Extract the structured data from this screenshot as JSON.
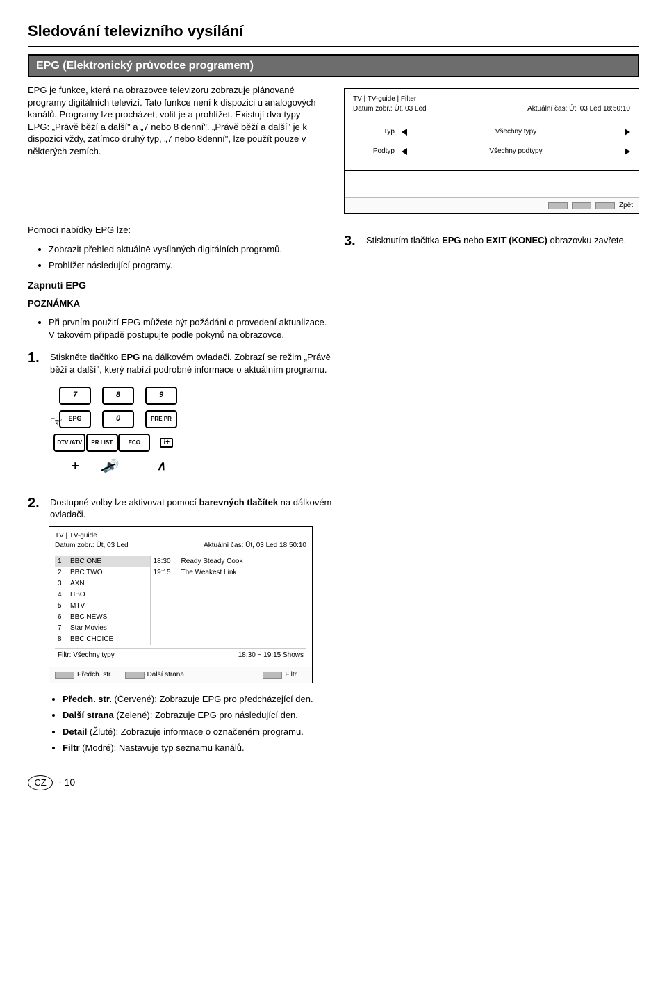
{
  "page": {
    "h1": "Sledování televizního vysílání",
    "h2": "EPG (Elektronický průvodce programem)",
    "footer_cz": "CZ",
    "footer_page": "- 10"
  },
  "intro": "EPG je funkce, která na obrazovce televizoru zobrazuje plánované programy digitálních televizí. Tato funkce není k dispozici u analogových kanálů. Programy lze procházet, volit je a prohlížet. Existují dva typy EPG: „Právě běží a další\" a „7 nebo 8 denní\". „Právě běží a další\" je k dispozici vždy, zatímco druhý typ, „7 nebo 8denní\", lze použít pouze v některých zemích.",
  "menu_intro": "Pomocí nabídky EPG lze:",
  "menu_items": {
    "i0": "Zobrazit přehled aktuálně vysílaných digitálních programů.",
    "i1": "Prohlížet následující programy."
  },
  "zapnuti_h": "Zapnutí EPG",
  "note_h": "POZNÁMKA",
  "note_item": "Při prvním použití EPG můžete být požádáni o provedení aktualizace. V takovém případě postupujte podle pokynů na obrazovce.",
  "step1": {
    "num": "1.",
    "pre": "Stiskněte tlačítko ",
    "b": "EPG",
    "post": " na dálkovém ovladači. Zobrazí se režim „Právě běží a další\", který nabízí podrobné informace o aktuálním programu."
  },
  "step2": {
    "num": "2.",
    "pre": "Dostupné volby lze aktivovat pomocí ",
    "b": "barevných tlačítek",
    "post": " na dálkovém ovladači."
  },
  "step3": {
    "num": "3.",
    "pre": "Stisknutím tlačítka ",
    "b1": "EPG",
    "mid": " nebo ",
    "b2": "EXIT (KONEC)",
    "post": " obrazovku zavřete."
  },
  "color_list": {
    "c0_b": "Předch. str.",
    "c0_t": " (Červené): Zobrazuje EPG pro předcházející den.",
    "c1_b": "Další strana",
    "c1_t": " (Zelené): Zobrazuje EPG pro následující den.",
    "c2_b": "Detail",
    "c2_t": " (Žluté): Zobrazuje informace o označeném programu.",
    "c3_b": "Filtr",
    "c3_t": " (Modré): Nastavuje typ seznamu kanálů."
  },
  "filter_osd": {
    "crumb": "TV | TV-guide | Filter",
    "date_label": "Datum zobr.: Út, 03 Led",
    "time_label": "Aktuální čas: Út, 03 Led  18:50:10",
    "row1_label": "Typ",
    "row1_value": "Všechny typy",
    "row2_label": "Podtyp",
    "row2_value": "Všechny podtypy",
    "back": "Zpět"
  },
  "guide_osd": {
    "crumb": "TV | TV-guide",
    "date_label": "Datum zobr.: Út, 03 Led",
    "time_label": "Aktuální čas: Út, 03 Led  18:50:10",
    "channels": [
      {
        "n": "1",
        "name": "BBC ONE"
      },
      {
        "n": "2",
        "name": "BBC TWO"
      },
      {
        "n": "3",
        "name": "AXN"
      },
      {
        "n": "4",
        "name": "HBO"
      },
      {
        "n": "5",
        "name": "MTV"
      },
      {
        "n": "6",
        "name": "BBC NEWS"
      },
      {
        "n": "7",
        "name": "Star Movies"
      },
      {
        "n": "8",
        "name": "BBC CHOICE"
      }
    ],
    "progs": [
      {
        "t": "18:30",
        "name": "Ready Steady Cook"
      },
      {
        "t": "19:15",
        "name": "The Weakest Link"
      }
    ],
    "filter_line": "Filtr: Všechny typy",
    "shows_line": "18:30 ~ 19:15 Shows",
    "foot_prev": "Předch. str.",
    "foot_next": "Další strana",
    "foot_filter": "Filtr"
  },
  "remote": {
    "r1": [
      "7",
      "8",
      "9"
    ],
    "r2": [
      "EPG",
      "0",
      "PRE PR"
    ],
    "r3_a": "DTV /ATV",
    "r3_b": "PR LIST",
    "r3_c": "ECO",
    "r3_d": "i+",
    "r4_plus": "+",
    "r4_mute": "🔊",
    "r4_up": "∧"
  }
}
